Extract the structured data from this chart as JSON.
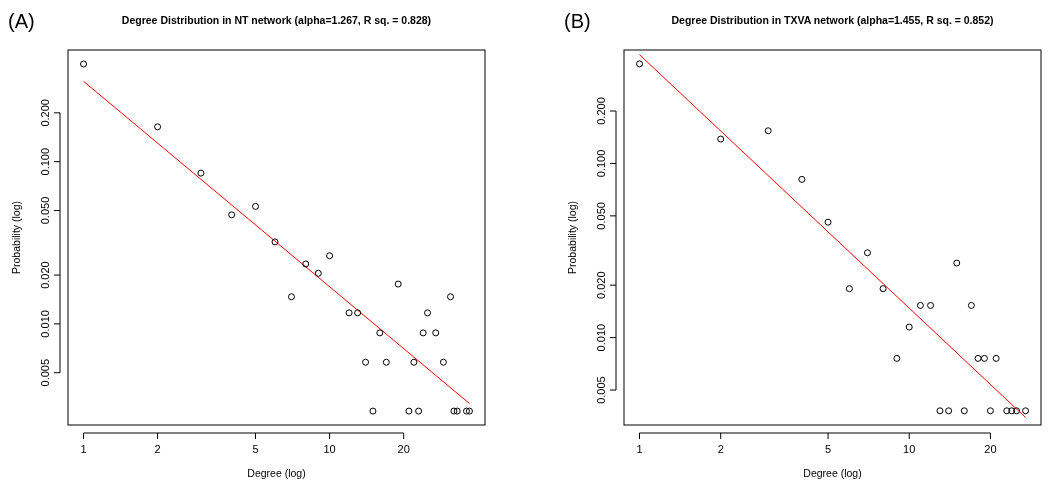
{
  "chart_data": [
    {
      "type": "scatter",
      "title": "Degree Distribution in NT network (alpha=1.267, R sq. = 0.828)",
      "xlabel": "Degree (log)",
      "ylabel": "Probability (log)",
      "annotations": [
        "(A)"
      ],
      "log": "xy",
      "xlim": [
        0.865,
        42.8
      ],
      "ylim": [
        0.00238,
        0.488
      ],
      "xticks": [
        1,
        2,
        5,
        10,
        20
      ],
      "yticks": [
        {
          "value": 0.005,
          "label": "0.005"
        },
        {
          "value": 0.01,
          "label": "0.010"
        },
        {
          "value": 0.02,
          "label": "0.020"
        },
        {
          "value": 0.05,
          "label": "0.050"
        },
        {
          "value": 0.1,
          "label": "0.100"
        },
        {
          "value": 0.2,
          "label": "0.200"
        }
      ],
      "series": [
        {
          "marker": "circle",
          "color": "#000000",
          "x": [
            1,
            2,
            3,
            4,
            5,
            6,
            7,
            8,
            9,
            10,
            12,
            13,
            14,
            15,
            16,
            17,
            19,
            21,
            22,
            23,
            24,
            25,
            27,
            29,
            31,
            32,
            33,
            36,
            37
          ],
          "values": [
            0.4,
            0.164,
            0.085,
            0.047,
            0.053,
            0.032,
            0.0147,
            0.0234,
            0.0205,
            0.0263,
            0.0117,
            0.0117,
            0.0058,
            0.0029,
            0.0088,
            0.0058,
            0.0176,
            0.0029,
            0.0058,
            0.0029,
            0.0088,
            0.0117,
            0.0088,
            0.0058,
            0.0147,
            0.0029,
            0.0029,
            0.0029,
            0.0029
          ]
        },
        {
          "type": "line",
          "marker": "none",
          "color": "#ff0000",
          "x": [
            1,
            37
          ],
          "values": [
            0.313,
            0.00323
          ]
        }
      ]
    },
    {
      "type": "scatter",
      "title": "Degree Distribution in TXVA network (alpha=1.455, R sq. = 0.852)",
      "xlabel": "Degree (log)",
      "ylabel": "Probability (log)",
      "annotations": [
        "(B)"
      ],
      "log": "xy",
      "xlim": [
        0.876,
        30.8
      ],
      "ylim": [
        0.00315,
        0.448
      ],
      "xticks": [
        1,
        2,
        5,
        10,
        20
      ],
      "yticks": [
        {
          "value": 0.005,
          "label": "0.005"
        },
        {
          "value": 0.01,
          "label": "0.010"
        },
        {
          "value": 0.02,
          "label": "0.020"
        },
        {
          "value": 0.05,
          "label": "0.050"
        },
        {
          "value": 0.1,
          "label": "0.100"
        },
        {
          "value": 0.2,
          "label": "0.200"
        }
      ],
      "series": [
        {
          "marker": "circle",
          "color": "#000000",
          "x": [
            1,
            2,
            3,
            4,
            5,
            6,
            7,
            8,
            9,
            10,
            11,
            12,
            13,
            14,
            15,
            16,
            17,
            18,
            19,
            20,
            21,
            23,
            24,
            25,
            27
          ],
          "values": [
            0.373,
            0.138,
            0.154,
            0.081,
            0.046,
            0.0191,
            0.0307,
            0.0191,
            0.0076,
            0.0115,
            0.0153,
            0.0153,
            0.0038,
            0.0038,
            0.0268,
            0.0038,
            0.0153,
            0.0076,
            0.0076,
            0.0038,
            0.0076,
            0.0038,
            0.0038,
            0.0038,
            0.0038
          ]
        },
        {
          "type": "line",
          "marker": "none",
          "color": "#ff0000",
          "x": [
            1,
            27
          ],
          "values": [
            0.421,
            0.00348
          ]
        }
      ]
    }
  ]
}
